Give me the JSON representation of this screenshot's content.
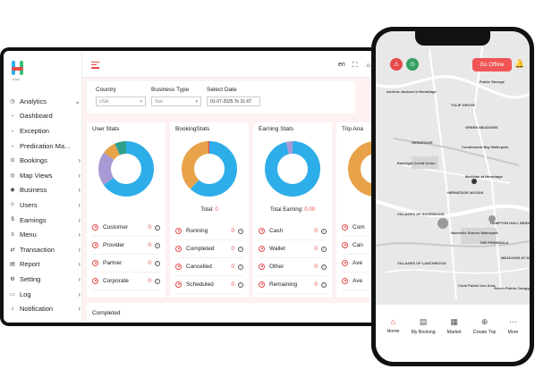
{
  "brand": {
    "logo_text": "H",
    "tag": "Kaiji"
  },
  "sidebar": {
    "items": [
      {
        "label": "Analytics",
        "icon": "analytics-icon",
        "glyph": "◷",
        "chevron": "⌄",
        "type": "group"
      },
      {
        "label": "Dashboard",
        "type": "sub"
      },
      {
        "label": "Exception",
        "type": "sub"
      },
      {
        "label": "Predication Ma...",
        "type": "sub"
      },
      {
        "label": "Bookings",
        "icon": "bookings-icon",
        "glyph": "⊙",
        "chevron": "›",
        "type": "group"
      },
      {
        "label": "Map Views",
        "icon": "map-icon",
        "glyph": "◎",
        "chevron": "›",
        "type": "group"
      },
      {
        "label": "Business",
        "icon": "business-icon",
        "glyph": "◉",
        "chevron": "›",
        "type": "group"
      },
      {
        "label": "Users",
        "icon": "users-icon",
        "glyph": "☺",
        "chevron": "›",
        "type": "group"
      },
      {
        "label": "Earnings",
        "icon": "earnings-icon",
        "glyph": "$",
        "chevron": "›",
        "type": "group"
      },
      {
        "label": "Menu",
        "icon": "menu-icon",
        "glyph": "≡",
        "chevron": "›",
        "type": "group"
      },
      {
        "label": "Transaction",
        "icon": "transaction-icon",
        "glyph": "⇄",
        "chevron": "›",
        "type": "group"
      },
      {
        "label": "Report",
        "icon": "report-icon",
        "glyph": "▤",
        "chevron": "›",
        "type": "group"
      },
      {
        "label": "Setting",
        "icon": "setting-icon",
        "glyph": "⚙",
        "chevron": "›",
        "type": "group"
      },
      {
        "label": "Log",
        "icon": "log-icon",
        "glyph": "▭",
        "chevron": "›",
        "type": "group"
      },
      {
        "label": "Notification",
        "icon": "notification-icon",
        "glyph": "♪",
        "chevron": "›",
        "type": "group"
      }
    ]
  },
  "topbar": {
    "lang": "en",
    "fullscreen_glyph": "⛶",
    "theme_glyph": "☼",
    "profile_glyph": "◕"
  },
  "filters": {
    "country": {
      "label": "Country",
      "value": "USA"
    },
    "business_type": {
      "label": "Business Type",
      "value": "Taxi"
    },
    "select_date": {
      "label": "Select Date",
      "value": "01-07-2025 To 31-07"
    }
  },
  "cards": [
    {
      "title": "User Stats",
      "total": null,
      "rows": [
        {
          "label": "Customer",
          "value": "0"
        },
        {
          "label": "Provider",
          "value": "0"
        },
        {
          "label": "Partner",
          "value": "0"
        },
        {
          "label": "Corporate",
          "value": "0"
        }
      ]
    },
    {
      "title": "BookingStats",
      "total": {
        "label": "Total:",
        "value": "0"
      },
      "rows": [
        {
          "label": "Running",
          "value": "0"
        },
        {
          "label": "Completed",
          "value": "0"
        },
        {
          "label": "Cancelled",
          "value": "0"
        },
        {
          "label": "Scheduled",
          "value": "0"
        }
      ]
    },
    {
      "title": "Earning Stats",
      "total": {
        "label": "Total Earning:",
        "value": "0.00"
      },
      "rows": [
        {
          "label": "Cash",
          "value": "0"
        },
        {
          "label": "Wallet",
          "value": "0"
        },
        {
          "label": "Other",
          "value": "0"
        },
        {
          "label": "Remaining",
          "value": "0"
        }
      ]
    },
    {
      "title": "Trip Ana",
      "total": null,
      "rows": [
        {
          "label": "Com",
          "value": ""
        },
        {
          "label": "Can",
          "value": ""
        },
        {
          "label": "Ave",
          "value": ""
        },
        {
          "label": "Ave",
          "value": ""
        }
      ]
    }
  ],
  "completed": {
    "label": "Completed"
  },
  "chart_data": [
    {
      "type": "pie",
      "title": "User Stats",
      "categories": [
        "",
        "",
        "",
        ""
      ],
      "values": [
        65,
        20,
        8,
        7
      ],
      "colors": [
        "#2eaee8",
        "#a99ad6",
        "#e7a24a",
        "#2f9f8e"
      ]
    },
    {
      "type": "pie",
      "title": "BookingStats",
      "categories": [
        "",
        "",
        ""
      ],
      "values": [
        62,
        37,
        1
      ],
      "colors": [
        "#2eaee8",
        "#e7a24a",
        "#e64a4a"
      ]
    },
    {
      "type": "pie",
      "title": "Earning Stats",
      "categories": [
        "",
        ""
      ],
      "values": [
        96,
        4
      ],
      "colors": [
        "#2eaee8",
        "#a99ad6"
      ]
    }
  ],
  "phone": {
    "offline_label": "Go Offline",
    "map_labels": [
      "BRANDYWINE POINTE",
      "Public Storage",
      "Andrew Jackson's Hermitage",
      "TULIP GROVE",
      "GREEN MEADOWS",
      "HERMITAGE",
      "Cumberland Bay Waterpark",
      "Embright Credit Union",
      "Meridian at Hermitage",
      "HERMITAGE WOODS",
      "VILLAGES OF RIVERWOOD",
      "HAMPTON HALL BRIDGEWATER",
      "Nashville Shores Waterpark",
      "THE PENINSULA",
      "MEADOWS AT KELTON",
      "VILLAGES OF LANCHWOOD",
      "Cook Public Use Area",
      "Seven Points Campground"
    ],
    "bottom_nav": [
      {
        "label": "Home",
        "icon": "home-icon",
        "glyph": "⌂"
      },
      {
        "label": "My Booking",
        "icon": "booking-icon",
        "glyph": "▤"
      },
      {
        "label": "Market",
        "icon": "market-icon",
        "glyph": "▦"
      },
      {
        "label": "Create Trip",
        "icon": "create-trip-icon",
        "glyph": "⊕"
      },
      {
        "label": "More",
        "icon": "more-icon",
        "glyph": "⋯"
      }
    ]
  }
}
